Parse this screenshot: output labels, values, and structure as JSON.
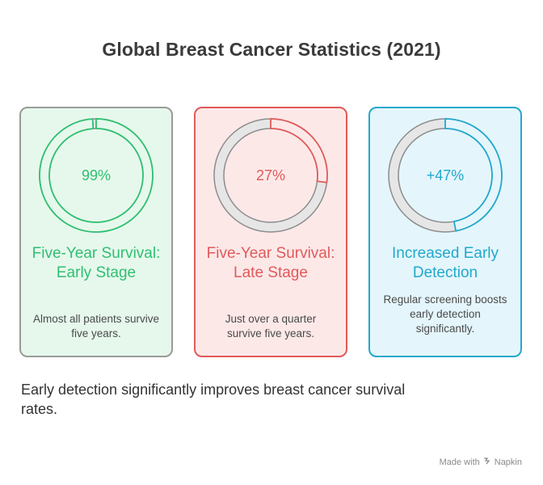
{
  "title": "Global Breast Cancer Statistics (2021)",
  "cards": [
    {
      "value_label": "99%",
      "percent": 99,
      "heading": "Five-Year Survival: Early Stage",
      "description": "Almost all patients survive five years.",
      "accent": "#2fbf71",
      "background": "#e6f8ec",
      "border": "#9a9a9a"
    },
    {
      "value_label": "27%",
      "percent": 27,
      "heading": "Five-Year Survival: Late Stage",
      "description": "Just over a quarter survive five years.",
      "accent": "#e05a5a",
      "background": "#fde8e8",
      "border": "#e05a5a"
    },
    {
      "value_label": "+47%",
      "percent": 47,
      "heading": "Increased Early Detection",
      "description": "Regular screening boosts early detection significantly.",
      "accent": "#22a8cc",
      "background": "#e4f6fc",
      "border": "#22a8cc"
    }
  ],
  "track_color": "#e6e6e6",
  "track_stroke": "#8c8c8c",
  "footer": "Early detection significantly improves breast cancer survival rates.",
  "watermark": {
    "prefix": "Made with",
    "brand": "Napkin",
    "icon": "napkin-logo-icon"
  }
}
